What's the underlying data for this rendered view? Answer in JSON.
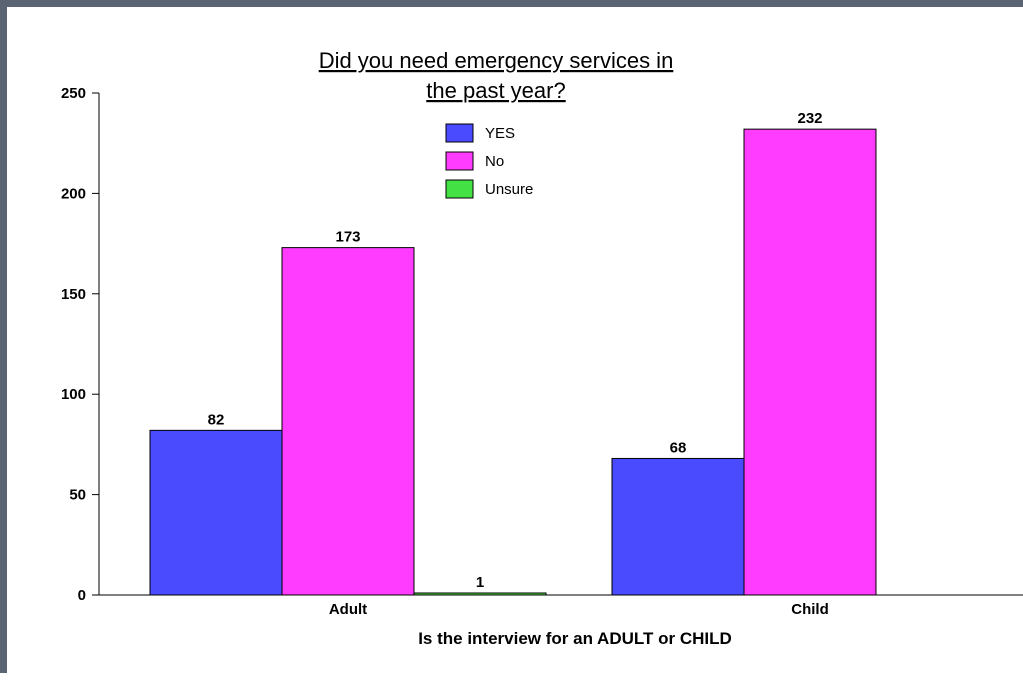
{
  "chart_data": {
    "type": "bar",
    "title_lines": [
      "Did you need emergency services in",
      "the past year?"
    ],
    "xlabel": "Is the interview for an ADULT or CHILD",
    "ylabel": "",
    "categories": [
      "Adult",
      "Child"
    ],
    "series": [
      {
        "name": "YES",
        "color": "#4a4aff",
        "values": [
          82,
          68
        ]
      },
      {
        "name": "No",
        "color": "#ff3cff",
        "values": [
          173,
          232
        ]
      },
      {
        "name": "Unsure",
        "color": "#44e144",
        "values": [
          1,
          null
        ]
      }
    ],
    "ylim": [
      0,
      250
    ],
    "yticks": [
      0,
      50,
      100,
      150,
      200,
      250
    ],
    "grid": false,
    "legend_position": "top-center"
  }
}
